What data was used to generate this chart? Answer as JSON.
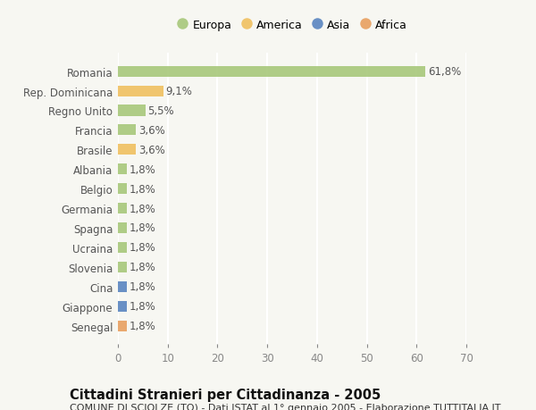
{
  "categories": [
    "Romania",
    "Rep. Dominicana",
    "Regno Unito",
    "Francia",
    "Brasile",
    "Albania",
    "Belgio",
    "Germania",
    "Spagna",
    "Ucraina",
    "Slovenia",
    "Cina",
    "Giappone",
    "Senegal"
  ],
  "values": [
    61.8,
    9.1,
    5.5,
    3.6,
    3.6,
    1.8,
    1.8,
    1.8,
    1.8,
    1.8,
    1.8,
    1.8,
    1.8,
    1.8
  ],
  "labels": [
    "61,8%",
    "9,1%",
    "5,5%",
    "3,6%",
    "3,6%",
    "1,8%",
    "1,8%",
    "1,8%",
    "1,8%",
    "1,8%",
    "1,8%",
    "1,8%",
    "1,8%",
    "1,8%"
  ],
  "continents": [
    "Europa",
    "America",
    "Europa",
    "Europa",
    "America",
    "Europa",
    "Europa",
    "Europa",
    "Europa",
    "Europa",
    "Europa",
    "Asia",
    "Asia",
    "Africa"
  ],
  "colors": {
    "Europa": "#a8c87a",
    "America": "#f0c060",
    "Asia": "#5a85c0",
    "Africa": "#e8a060"
  },
  "legend_order": [
    "Europa",
    "America",
    "Asia",
    "Africa"
  ],
  "xlim": [
    0,
    70
  ],
  "xticks": [
    0,
    10,
    20,
    30,
    40,
    50,
    60,
    70
  ],
  "title": "Cittadini Stranieri per Cittadinanza - 2005",
  "subtitle": "COMUNE DI SCIOLZE (TO) - Dati ISTAT al 1° gennaio 2005 - Elaborazione TUTTITALIA.IT",
  "background_color": "#f7f7f2",
  "bar_height": 0.55,
  "grid_color": "#ffffff",
  "label_fontsize": 8.5,
  "tick_fontsize": 8.5,
  "title_fontsize": 10.5,
  "subtitle_fontsize": 8.0
}
